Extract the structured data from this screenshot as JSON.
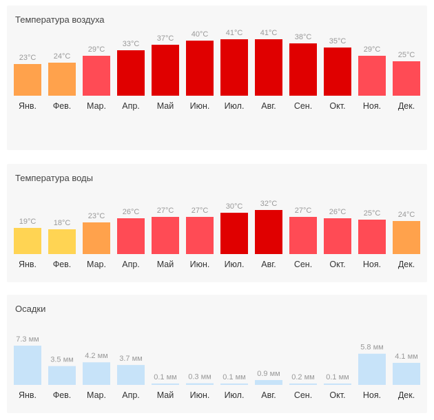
{
  "months": [
    "Янв.",
    "Фев.",
    "Мар.",
    "Апр.",
    "Май",
    "Июн.",
    "Июл.",
    "Авг.",
    "Сен.",
    "Окт.",
    "Ноя.",
    "Дек."
  ],
  "colors": {
    "orange": "#ffa24c",
    "yellow": "#ffd453",
    "light_red": "#ff4b55",
    "red": "#e00000",
    "blue": "#c7e3f9"
  },
  "chart_data": [
    {
      "type": "bar",
      "title": "Температура воздуха",
      "unit": "°C",
      "categories": [
        "Янв.",
        "Фев.",
        "Мар.",
        "Апр.",
        "Май",
        "Июн.",
        "Июл.",
        "Авг.",
        "Сен.",
        "Окт.",
        "Ноя.",
        "Дек."
      ],
      "values": [
        23,
        24,
        29,
        33,
        37,
        40,
        41,
        41,
        38,
        35,
        29,
        25
      ],
      "value_labels": [
        "23°C",
        "24°C",
        "29°C",
        "33°C",
        "37°C",
        "40°C",
        "41°C",
        "41°C",
        "38°C",
        "35°C",
        "29°C",
        "25°C"
      ],
      "bar_colors": [
        "orange",
        "orange",
        "light_red",
        "red",
        "red",
        "red",
        "red",
        "red",
        "red",
        "red",
        "light_red",
        "light_red"
      ]
    },
    {
      "type": "bar",
      "title": "Температура воды",
      "unit": "°C",
      "categories": [
        "Янв.",
        "Фев.",
        "Мар.",
        "Апр.",
        "Май",
        "Июн.",
        "Июл.",
        "Авг.",
        "Сен.",
        "Окт.",
        "Ноя.",
        "Дек."
      ],
      "values": [
        19,
        18,
        23,
        26,
        27,
        27,
        30,
        32,
        27,
        26,
        25,
        24
      ],
      "value_labels": [
        "19°C",
        "18°C",
        "23°C",
        "26°C",
        "27°C",
        "27°C",
        "30°C",
        "32°C",
        "27°C",
        "26°C",
        "25°C",
        "24°C"
      ],
      "bar_colors": [
        "yellow",
        "yellow",
        "orange",
        "light_red",
        "light_red",
        "light_red",
        "red",
        "red",
        "light_red",
        "light_red",
        "light_red",
        "orange"
      ]
    },
    {
      "type": "bar",
      "title": "Осадки",
      "unit": "мм",
      "categories": [
        "Янв.",
        "Фев.",
        "Мар.",
        "Апр.",
        "Май",
        "Июн.",
        "Июл.",
        "Авг.",
        "Сен.",
        "Окт.",
        "Ноя.",
        "Дек."
      ],
      "values": [
        7.3,
        3.5,
        4.2,
        3.7,
        0.1,
        0.3,
        0.1,
        0.9,
        0.2,
        0.1,
        5.8,
        4.1
      ],
      "value_labels": [
        "7.3 мм",
        "3.5 мм",
        "4.2 мм",
        "3.7 мм",
        "0.1 мм",
        "0.3 мм",
        "0.1 мм",
        "0.9 мм",
        "0.2 мм",
        "0.1 мм",
        "5.8 мм",
        "4.1 мм"
      ],
      "bar_colors": [
        "blue",
        "blue",
        "blue",
        "blue",
        "blue",
        "blue",
        "blue",
        "blue",
        "blue",
        "blue",
        "blue",
        "blue"
      ]
    }
  ]
}
